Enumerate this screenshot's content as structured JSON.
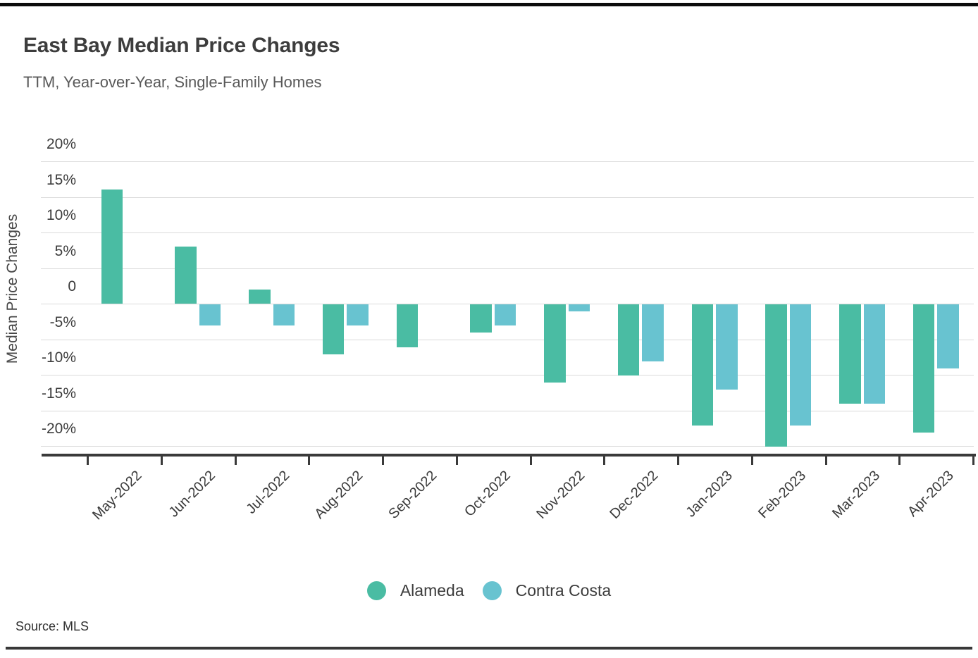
{
  "page": {
    "title": "East Bay Median Price Changes",
    "subtitle": "TTM, Year-over-Year, Single-Family Homes",
    "source_label": "Source: MLS"
  },
  "chart_data": {
    "type": "bar",
    "title": "East Bay Median Price Changes",
    "subtitle": "TTM, Year-over-Year, Single-Family Homes",
    "xlabel": "",
    "ylabel": "Median Price Changes",
    "unit": "percent",
    "categories": [
      "May-2022",
      "Jun-2022",
      "Jul-2022",
      "Aug-2022",
      "Sep-2022",
      "Oct-2022",
      "Nov-2022",
      "Dec-2022",
      "Jan-2023",
      "Feb-2023",
      "Mar-2023",
      "Apr-2023"
    ],
    "series": [
      {
        "name": "Alameda",
        "color": "#4abca3",
        "values": [
          16,
          8,
          2,
          -7,
          -6,
          -4,
          -11,
          -10,
          -17,
          -20,
          -14,
          -18
        ]
      },
      {
        "name": "Contra Costa",
        "color": "#68c3d0",
        "values": [
          null,
          -3,
          -3,
          -3,
          null,
          -3,
          -1,
          -8,
          -12,
          -17,
          -14,
          -9
        ]
      }
    ],
    "y_ticks": [
      {
        "label": "20%",
        "value": 20
      },
      {
        "label": "15%",
        "value": 15
      },
      {
        "label": "10%",
        "value": 10
      },
      {
        "label": "5%",
        "value": 5
      },
      {
        "label": "0",
        "value": 0
      },
      {
        "label": "-5%",
        "value": -5
      },
      {
        "label": "-10%",
        "value": -10
      },
      {
        "label": "-15%",
        "value": -15
      },
      {
        "label": "-20%",
        "value": -20
      }
    ],
    "ylim": [
      -21.2,
      22
    ],
    "grid": true,
    "legend_position": "bottom-center",
    "source": "MLS"
  }
}
